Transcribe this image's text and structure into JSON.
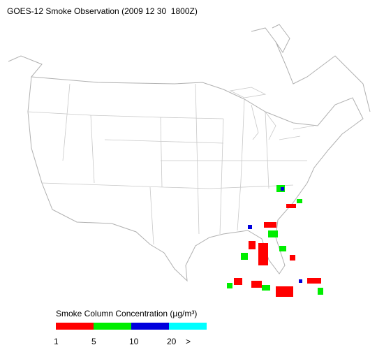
{
  "title": "GOES-12 Smoke Observation (2009 12 30  1800Z)",
  "legend": {
    "title": "Smoke Column Concentration (µg/m³)",
    "colors": [
      "#ff0000",
      "#00ee00",
      "#0000dd",
      "#00ffff"
    ],
    "labels": [
      "1",
      "5",
      "10",
      "20",
      ">"
    ]
  }
}
